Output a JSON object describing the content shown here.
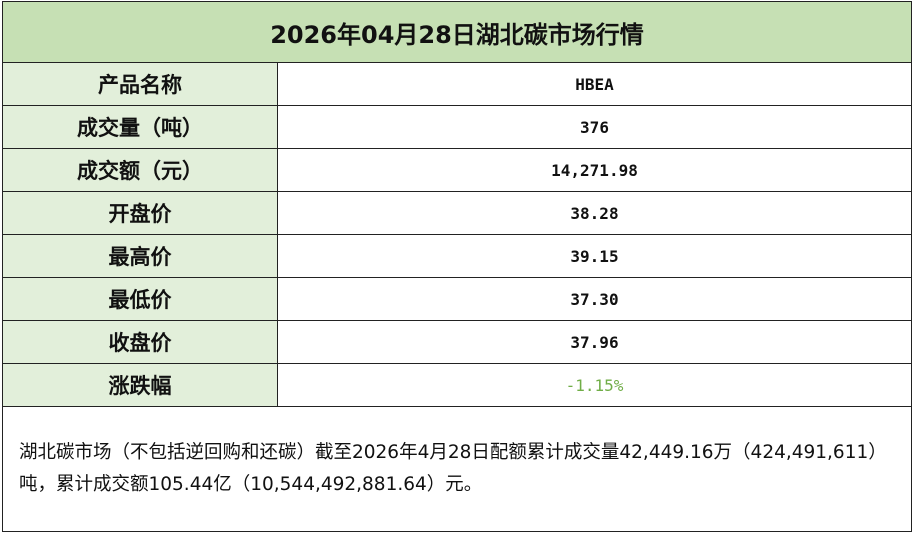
{
  "title": "2026年04月28日湖北碳市场行情",
  "rows": [
    {
      "label": "产品名称",
      "value": "HBEA"
    },
    {
      "label": "成交量（吨）",
      "value": "376"
    },
    {
      "label": "成交额（元）",
      "value": "14,271.98"
    },
    {
      "label": "开盘价",
      "value": "38.28"
    },
    {
      "label": "最高价",
      "value": "39.15"
    },
    {
      "label": "最低价",
      "value": "37.30"
    },
    {
      "label": "收盘价",
      "value": "37.96"
    },
    {
      "label": "涨跌幅",
      "value": "-1.15%"
    }
  ],
  "change_color": "#70ad47",
  "note": "湖北碳市场（不包括逆回购和还碳）截至2026年4月28日配额累计成交量42,449.16万（424,491,611）吨，累计成交额105.44亿（10,544,492,881.64）元。"
}
